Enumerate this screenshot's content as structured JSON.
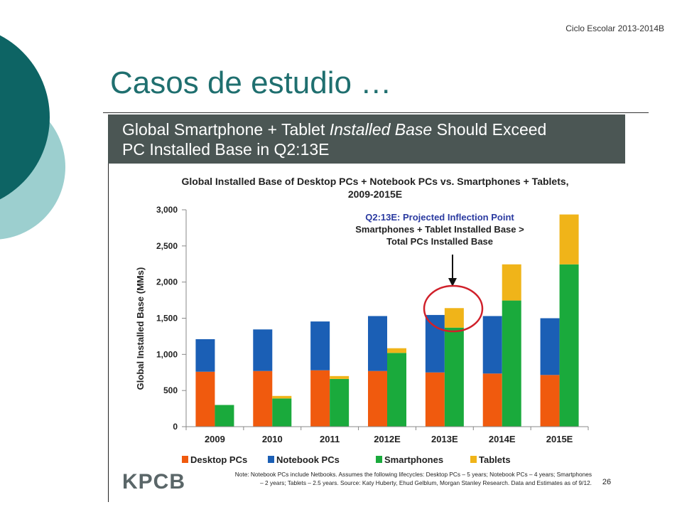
{
  "slide": {
    "header": "Ciclo Escolar 2013-2014B",
    "title": "Casos de estudio …",
    "banner_line1_prefix": "Global Smartphone + Tablet ",
    "banner_line1_italic": "Installed Base",
    "banner_line1_suffix": " Should Exceed",
    "banner_line2": "PC Installed Base in Q2:13E",
    "brand": "KPCB",
    "footnote_line1": "Note: Notebook PCs include Netbooks. Assumes the following lifecycles: Desktop PCs – 5 years; Notebook PCs – 4 years; Smartphones",
    "footnote_line2": "– 2 years; Tablets – 2.5 years. Source: Katy Huberty, Ehud Gelblum, Morgan Stanley Research. Data and Estimates as of 9/12.",
    "page_number": "26"
  },
  "colors": {
    "title": "#1f6f6f",
    "dark_teal": "#0d6464",
    "light_teal": "#9ccfcf",
    "banner": "#4b5654",
    "highlight_circle": "#d0202a"
  },
  "chart_data": {
    "type": "bar",
    "title": "Global Installed Base of Desktop PCs + Notebook PCs vs. Smartphones + Tablets, 2009-2015E",
    "title_line1": "Global Installed Base of Desktop PCs + Notebook PCs vs. Smartphones + Tablets,",
    "title_line2": "2009-2015E",
    "ylabel": "Global Installed Base (MMs)",
    "xlabel": "",
    "ylim": [
      0,
      3000
    ],
    "yticks": [
      0,
      500,
      1000,
      1500,
      2000,
      2500,
      3000
    ],
    "ytick_labels": [
      "0",
      "500",
      "1,000",
      "1,500",
      "2,000",
      "2,500",
      "3,000"
    ],
    "categories": [
      "2009",
      "2010",
      "2011",
      "2012E",
      "2013E",
      "2014E",
      "2015E"
    ],
    "grid": false,
    "legend_position": "bottom",
    "stacks": [
      {
        "name": "PCs",
        "series": [
          "Desktop PCs",
          "Notebook PCs"
        ]
      },
      {
        "name": "Smartphones + Tablets",
        "series": [
          "Smartphones",
          "Tablets"
        ]
      }
    ],
    "series": [
      {
        "name": "Desktop PCs",
        "color": "#f05a0e",
        "values": [
          760,
          770,
          780,
          770,
          750,
          735,
          715
        ]
      },
      {
        "name": "Notebook PCs",
        "color": "#1b5fb5",
        "values": [
          450,
          575,
          675,
          760,
          795,
          795,
          785
        ]
      },
      {
        "name": "Smartphones",
        "color": "#1aaa3c",
        "values": [
          300,
          390,
          660,
          1020,
          1370,
          1745,
          2245
        ]
      },
      {
        "name": "Tablets",
        "color": "#f0b419",
        "values": [
          0,
          35,
          40,
          65,
          270,
          500,
          690
        ]
      }
    ],
    "annotation": {
      "line1": "Q2:13E: Projected Inflection Point",
      "line2": "Smartphones + Tablet Installed Base >",
      "line3": "Total PCs Installed Base",
      "category": "2013E"
    }
  }
}
